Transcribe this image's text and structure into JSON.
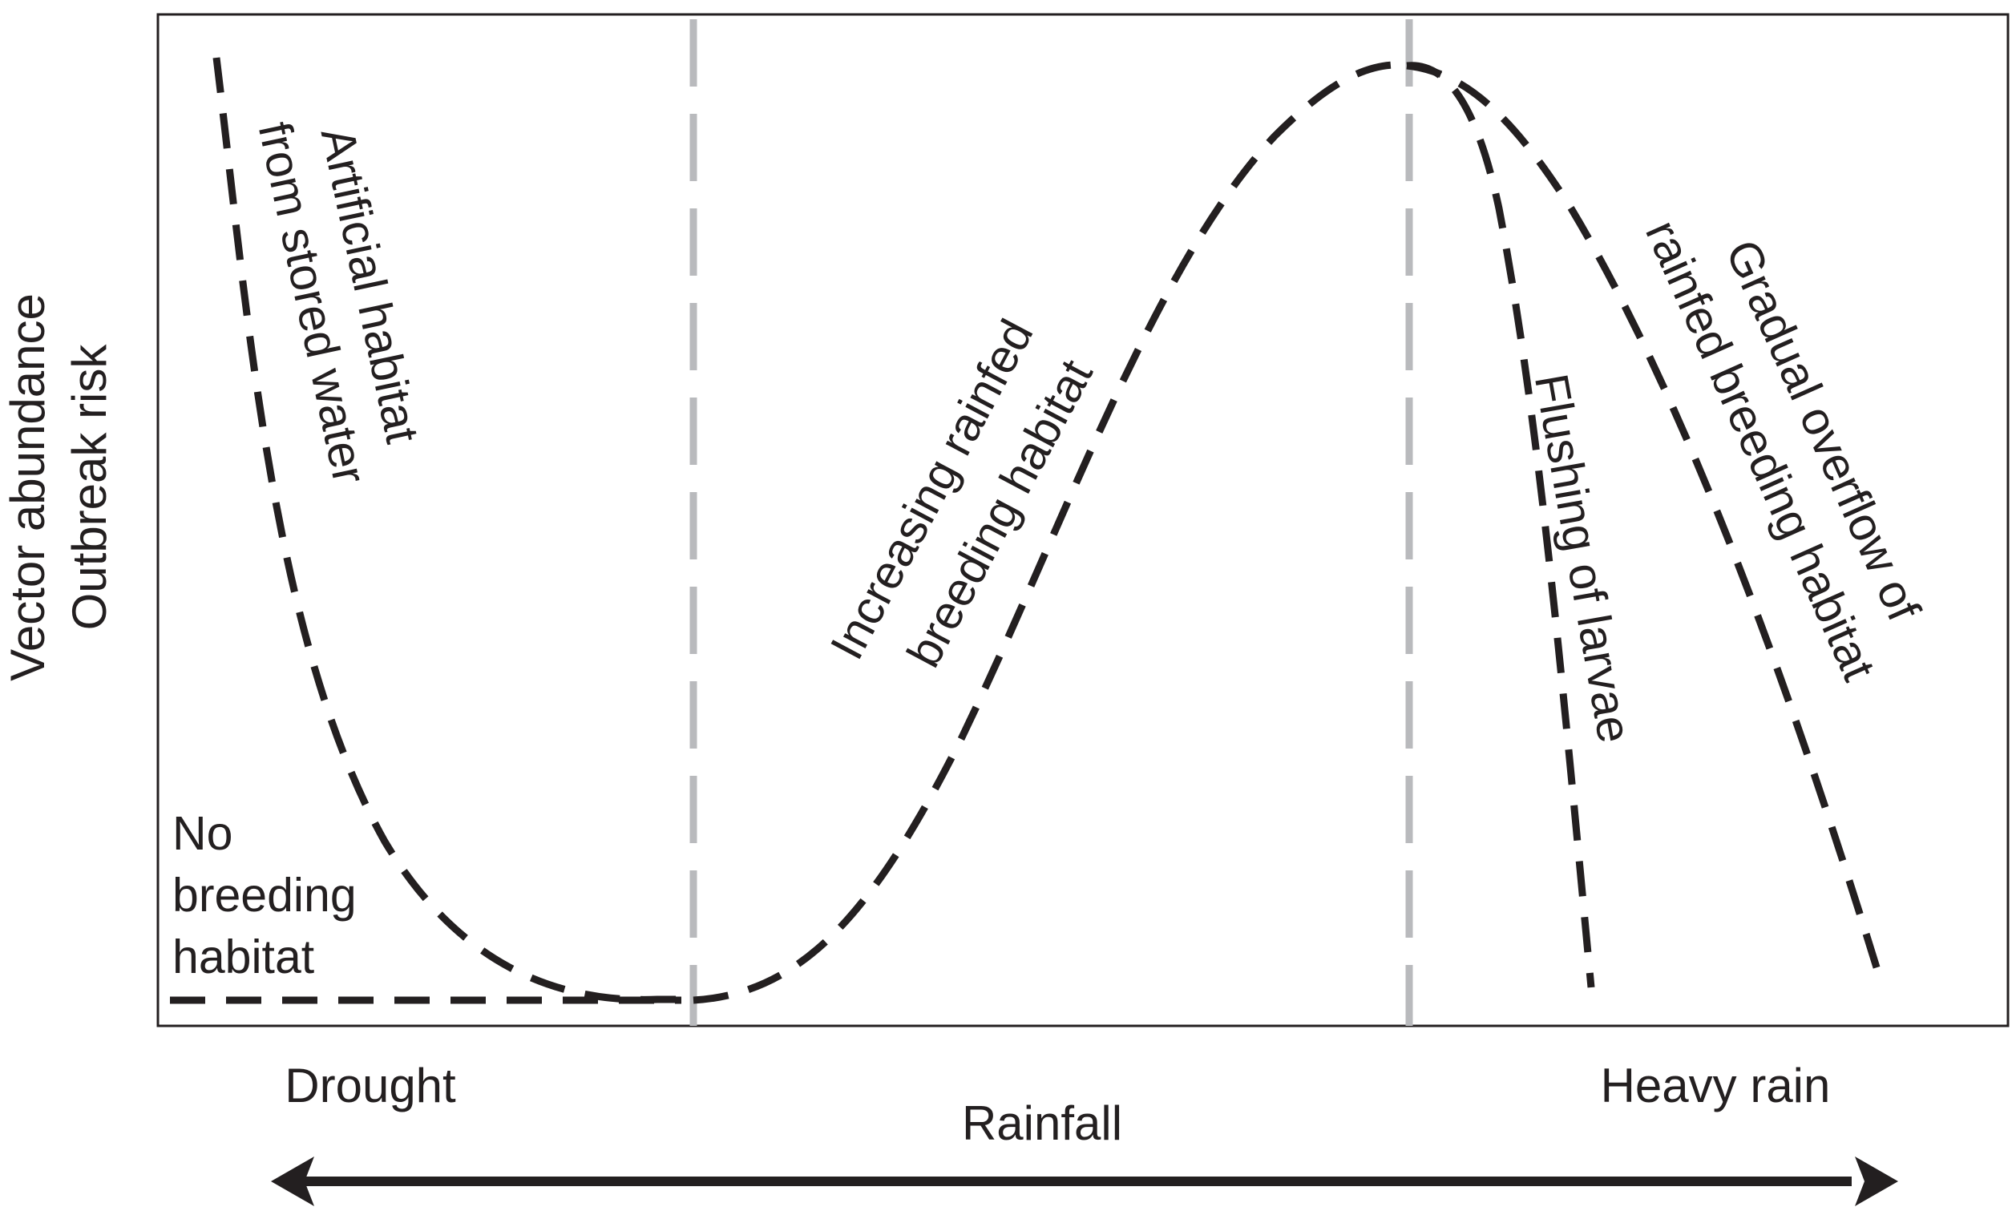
{
  "y_axis": {
    "labels": [
      "Vector abundance",
      "Outbreak risk"
    ]
  },
  "x_axis": {
    "label": "Rainfall",
    "left_end": "Drought",
    "right_end": "Heavy rain"
  },
  "annotations": {
    "no_breeding": [
      "No",
      "breeding",
      "habitat"
    ],
    "artificial": [
      "Artificial habitat",
      "from stored water"
    ],
    "increasing": [
      "Increasing rainfed",
      "breeding habitat"
    ],
    "flushing": [
      "Flushing of larvae"
    ],
    "gradual": [
      "Gradual overflow of",
      "rainfed breeding habitat"
    ]
  },
  "colors": {
    "curve": "#231f20",
    "divider": "#b9babd",
    "text": "#231f20"
  }
}
